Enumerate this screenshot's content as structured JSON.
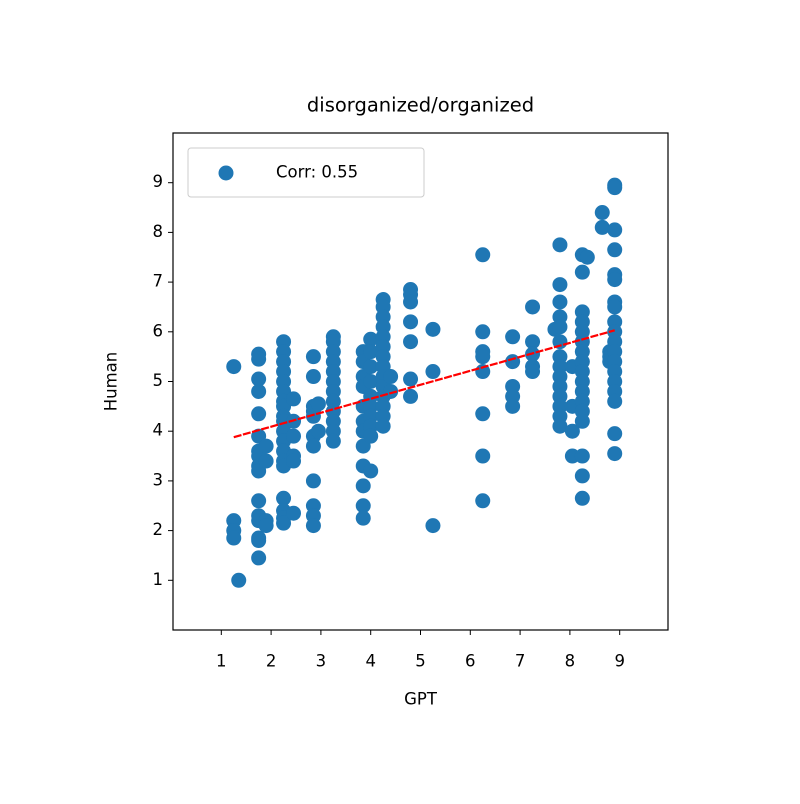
{
  "chart_data": {
    "type": "scatter",
    "title": "disorganized/organized",
    "xlabel": "GPT",
    "ylabel": "Human",
    "xlim": [
      0.03,
      9.97
    ],
    "ylim": [
      0.0,
      10.0
    ],
    "xticks": [
      1,
      2,
      3,
      4,
      5,
      6,
      7,
      8,
      9
    ],
    "yticks": [
      1,
      2,
      3,
      4,
      5,
      6,
      7,
      8,
      9
    ],
    "legend": "upper left",
    "series": [
      {
        "name": "Corr: 0.55",
        "color": "#1f77b4",
        "x": [
          1.25,
          1.25,
          1.25,
          1.25,
          1.35,
          1.75,
          1.75,
          1.75,
          1.75,
          1.75,
          1.75,
          1.75,
          1.75,
          1.75,
          1.75,
          1.75,
          1.75,
          1.75,
          1.75,
          1.75,
          1.75,
          1.9,
          1.9,
          1.9,
          1.9,
          2.25,
          2.25,
          2.25,
          2.25,
          2.25,
          2.25,
          2.25,
          2.25,
          2.25,
          2.25,
          2.25,
          2.25,
          2.25,
          2.25,
          2.25,
          2.25,
          2.25,
          2.25,
          2.25,
          2.45,
          2.45,
          2.45,
          2.45,
          2.45,
          2.45,
          2.85,
          2.85,
          2.85,
          2.85,
          2.85,
          2.85,
          2.85,
          2.85,
          2.85,
          2.85,
          2.85,
          2.95,
          2.95,
          3.25,
          3.25,
          3.25,
          3.25,
          3.25,
          3.25,
          3.25,
          3.25,
          3.25,
          3.25,
          3.25,
          3.25,
          3.85,
          3.85,
          3.85,
          3.85,
          3.85,
          3.85,
          3.85,
          3.85,
          3.85,
          3.85,
          3.85,
          3.85,
          4.0,
          4.0,
          4.0,
          4.0,
          4.0,
          4.0,
          4.0,
          4.0,
          4.0,
          4.0,
          4.25,
          4.25,
          4.25,
          4.25,
          4.25,
          4.25,
          4.25,
          4.25,
          4.25,
          4.25,
          4.25,
          4.25,
          4.25,
          4.25,
          4.4,
          4.4,
          4.8,
          4.8,
          4.8,
          4.8,
          4.8,
          4.8,
          4.8,
          5.25,
          5.25,
          5.25,
          6.25,
          6.25,
          6.25,
          6.25,
          6.25,
          6.25,
          6.25,
          6.25,
          6.85,
          6.85,
          6.85,
          6.85,
          6.85,
          7.25,
          7.25,
          7.25,
          7.25,
          7.25,
          7.7,
          7.8,
          7.8,
          7.8,
          7.8,
          7.8,
          7.8,
          7.8,
          7.8,
          7.8,
          7.8,
          7.8,
          7.8,
          7.8,
          7.8,
          8.05,
          8.05,
          8.05,
          8.05,
          8.25,
          8.25,
          8.25,
          8.25,
          8.25,
          8.25,
          8.25,
          8.25,
          8.25,
          8.25,
          8.25,
          8.25,
          8.25,
          8.25,
          8.25,
          8.25,
          8.25,
          8.35,
          8.65,
          8.65,
          8.8,
          8.8,
          8.8,
          8.9,
          8.9,
          8.9,
          8.9,
          8.9,
          8.9,
          8.9,
          8.9,
          8.9,
          8.9,
          8.9,
          8.9,
          8.9,
          8.9,
          8.9,
          8.9,
          8.9,
          8.9,
          8.9
        ],
        "y": [
          5.3,
          2.2,
          2.0,
          1.85,
          1.0,
          5.55,
          5.45,
          5.05,
          4.8,
          4.35,
          3.9,
          3.6,
          3.5,
          3.3,
          3.2,
          2.6,
          2.3,
          2.2,
          1.85,
          1.8,
          1.45,
          3.7,
          3.4,
          2.2,
          2.1,
          5.8,
          5.6,
          5.4,
          5.2,
          5.0,
          4.8,
          4.6,
          4.5,
          4.3,
          4.2,
          4.0,
          3.8,
          3.6,
          3.4,
          3.3,
          2.65,
          2.4,
          2.25,
          2.15,
          4.65,
          4.2,
          3.9,
          3.5,
          3.4,
          2.35,
          5.5,
          5.1,
          4.5,
          4.4,
          4.3,
          3.9,
          3.7,
          3.0,
          2.5,
          2.3,
          2.1,
          4.55,
          4.0,
          5.9,
          5.8,
          5.6,
          5.4,
          5.2,
          5.0,
          4.8,
          4.6,
          4.4,
          4.2,
          4.0,
          3.8,
          5.6,
          5.4,
          5.1,
          4.9,
          4.5,
          4.2,
          4.0,
          3.7,
          3.3,
          2.9,
          2.5,
          2.25,
          5.85,
          5.6,
          5.3,
          5.0,
          4.7,
          4.5,
          4.3,
          4.1,
          3.9,
          3.2,
          6.65,
          6.5,
          6.3,
          6.1,
          5.9,
          5.7,
          5.5,
          5.3,
          5.1,
          4.9,
          4.7,
          4.5,
          4.3,
          4.1,
          5.1,
          4.8,
          6.85,
          6.75,
          6.6,
          6.2,
          5.8,
          5.05,
          4.7,
          6.05,
          5.2,
          2.1,
          7.55,
          6.0,
          5.6,
          5.5,
          5.2,
          4.35,
          3.5,
          2.6,
          5.9,
          5.4,
          4.9,
          4.7,
          4.5,
          6.5,
          5.8,
          5.55,
          5.3,
          5.2,
          6.05,
          7.75,
          6.95,
          6.6,
          6.3,
          6.1,
          5.8,
          5.5,
          5.3,
          5.1,
          4.9,
          4.7,
          4.5,
          4.3,
          4.1,
          5.3,
          4.5,
          4.0,
          3.5,
          7.55,
          7.2,
          6.4,
          6.2,
          6.0,
          5.8,
          5.6,
          5.4,
          5.2,
          5.0,
          4.8,
          4.6,
          4.4,
          4.2,
          3.5,
          3.1,
          2.65,
          7.5,
          8.4,
          8.1,
          5.6,
          5.5,
          5.4,
          8.95,
          8.9,
          8.05,
          7.65,
          7.15,
          7.05,
          6.6,
          6.5,
          6.2,
          6.0,
          5.8,
          5.6,
          5.4,
          5.2,
          5.0,
          4.8,
          4.6,
          3.95,
          3.55
        ]
      }
    ],
    "fit": {
      "color": "#ff0000",
      "x": [
        1.25,
        8.9
      ],
      "y": [
        3.88,
        6.03
      ]
    }
  }
}
